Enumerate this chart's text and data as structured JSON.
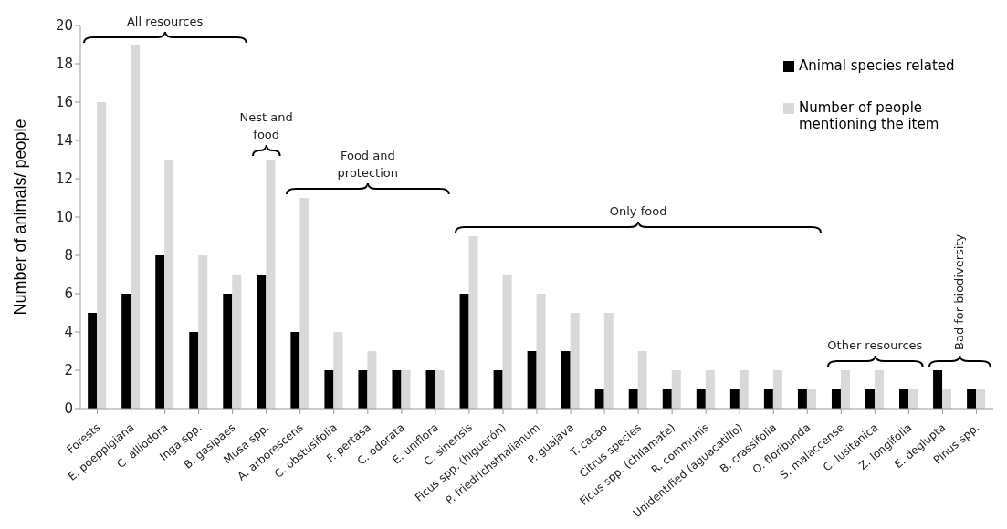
{
  "chart_data": {
    "type": "bar",
    "ylabel": "Number of animals/ people",
    "categories": [
      "Forests",
      "E. poeppigiana",
      "C. alliodora",
      "Inga spp.",
      "B. gasipaes",
      "Musa spp.",
      "A. arborescens",
      "C. obstusifolia",
      "F. pertasa",
      "C. odorata",
      "E. uniflora",
      "C. sinensis",
      "Ficus spp. (higuerón)",
      "P. friedrichsthalianum",
      "P. guajava",
      "T. cacao",
      "Citrus species",
      "Ficus spp. (chilamate)",
      "R. communis",
      "Unidentified (aguacatillo)",
      "B. crassifolia",
      "O. floribunda",
      "S. malaccense",
      "C. lusitanica",
      "Z. longifolia",
      "E. deglupta",
      "Pinus spp."
    ],
    "series": [
      {
        "name": "Animal species related",
        "color": "#000000",
        "values": [
          5,
          6,
          8,
          4,
          6,
          7,
          4,
          2,
          2,
          2,
          2,
          6,
          2,
          3,
          3,
          1,
          1,
          1,
          1,
          1,
          1,
          1,
          1,
          1,
          1,
          2,
          1
        ]
      },
      {
        "name": "Number of people mentioning the item",
        "color": "#d9d9d9",
        "values": [
          16,
          19,
          13,
          8,
          7,
          13,
          11,
          4,
          3,
          2,
          2,
          9,
          7,
          6,
          5,
          5,
          3,
          2,
          2,
          2,
          2,
          1,
          2,
          2,
          1,
          1,
          1
        ]
      }
    ],
    "ylim": [
      0,
      20
    ],
    "yticks": [
      0,
      2,
      4,
      6,
      8,
      10,
      12,
      14,
      16,
      18,
      20
    ],
    "grid": false,
    "legend": "top right",
    "annotations": [
      "All resources",
      "Nest and food",
      "Food and protection",
      "Only food",
      "Other resources",
      "Bad for biodiversity"
    ]
  }
}
